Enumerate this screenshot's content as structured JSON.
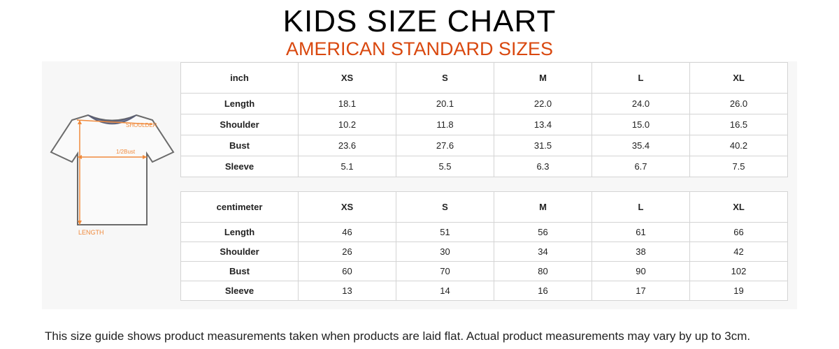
{
  "header": {
    "title": "KIDS SIZE CHART",
    "subtitle": "AMERICAN STANDARD SIZES"
  },
  "diagram": {
    "shoulder_label": "SHOULDER",
    "bust_label": "1/2Bust",
    "length_label": "LENGTH",
    "accent_color": "#f08a3c"
  },
  "inch_table": {
    "unit": "inch",
    "sizes": [
      "XS",
      "S",
      "M",
      "L",
      "XL"
    ],
    "rows": [
      {
        "label": "Length",
        "values": [
          "18.1",
          "20.1",
          "22.0",
          "24.0",
          "26.0"
        ]
      },
      {
        "label": "Shoulder",
        "values": [
          "10.2",
          "11.8",
          "13.4",
          "15.0",
          "16.5"
        ]
      },
      {
        "label": "Bust",
        "values": [
          "23.6",
          "27.6",
          "31.5",
          "35.4",
          "40.2"
        ]
      },
      {
        "label": "Sleeve",
        "values": [
          "5.1",
          "5.5",
          "6.3",
          "6.7",
          "7.5"
        ]
      }
    ]
  },
  "cm_table": {
    "unit": "centimeter",
    "sizes": [
      "XS",
      "S",
      "M",
      "L",
      "XL"
    ],
    "rows": [
      {
        "label": "Length",
        "values": [
          "46",
          "51",
          "56",
          "61",
          "66"
        ]
      },
      {
        "label": "Shoulder",
        "values": [
          "26",
          "30",
          "34",
          "38",
          "42"
        ]
      },
      {
        "label": "Bust",
        "values": [
          "60",
          "70",
          "80",
          "90",
          "102"
        ]
      },
      {
        "label": "Sleeve",
        "values": [
          "13",
          "14",
          "16",
          "17",
          "19"
        ]
      }
    ]
  },
  "footnote": "This size guide shows product measurements taken when products are laid flat. Actual product measurements may vary by up to 3cm."
}
